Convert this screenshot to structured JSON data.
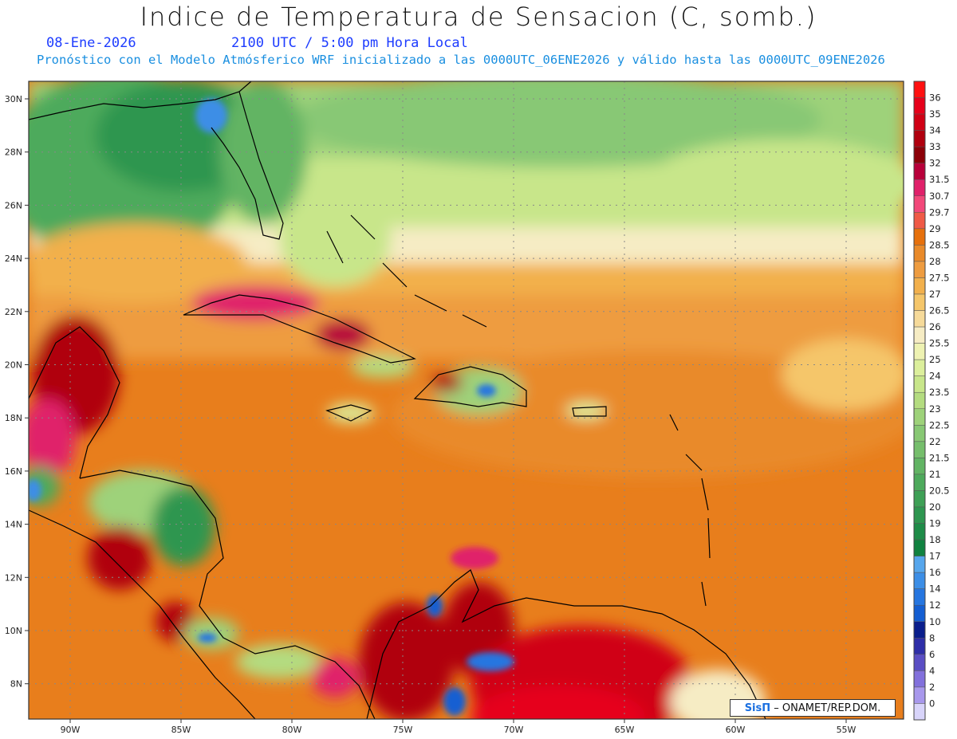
{
  "title": "Indice de Temperatura de Sensacion (C, somb.)",
  "date_label": "08-Ene-2026",
  "time_label": "2100 UTC / 5:00 pm Hora Local",
  "model_info": "Pronóstico con el Modelo Atmósferico WRF inicializado a las 0000UTC_06ENE2026 y válido hasta las  0000UTC_09ENE2026",
  "credit": {
    "brand": "SisΠ",
    "text": "– ONAMET/REP.DOM."
  },
  "axes": {
    "lon_ticks": [
      "90W",
      "85W",
      "80W",
      "75W",
      "70W",
      "65W",
      "60W",
      "55W"
    ],
    "lat_ticks": [
      "30N",
      "28N",
      "26N",
      "24N",
      "22N",
      "20N",
      "18N",
      "16N",
      "14N",
      "12N",
      "10N",
      "8N"
    ]
  },
  "colorbar": {
    "levels": [
      {
        "label": "36",
        "color": "#e6001a"
      },
      {
        "label": "35",
        "color": "#d00014"
      },
      {
        "label": "34",
        "color": "#b0000e"
      },
      {
        "label": "33",
        "color": "#8c0008"
      },
      {
        "label": "32",
        "color": "#b8003a"
      },
      {
        "label": "31.5",
        "color": "#e0206a"
      },
      {
        "label": "30.7",
        "color": "#f2487a"
      },
      {
        "label": "29.7",
        "color": "#f05a46"
      },
      {
        "label": "29",
        "color": "#e6700c"
      },
      {
        "label": "28.5",
        "color": "#e98a2a"
      },
      {
        "label": "28",
        "color": "#ee9c40"
      },
      {
        "label": "27.5",
        "color": "#f2b04c"
      },
      {
        "label": "27",
        "color": "#f5c66a"
      },
      {
        "label": "26.5",
        "color": "#f6da9a"
      },
      {
        "label": "26",
        "color": "#f6ecc4"
      },
      {
        "label": "25.5",
        "color": "#eef2b2"
      },
      {
        "label": "25",
        "color": "#dcef9c"
      },
      {
        "label": "24",
        "color": "#c8e68a"
      },
      {
        "label": "23.5",
        "color": "#b4dc80"
      },
      {
        "label": "23",
        "color": "#9ed27a"
      },
      {
        "label": "22.5",
        "color": "#88c874"
      },
      {
        "label": "22",
        "color": "#76be6c"
      },
      {
        "label": "21.5",
        "color": "#62b464"
      },
      {
        "label": "21",
        "color": "#4eaa5c"
      },
      {
        "label": "20.5",
        "color": "#3ea056"
      },
      {
        "label": "20",
        "color": "#2e9650"
      },
      {
        "label": "19",
        "color": "#1e8c48"
      },
      {
        "label": "18",
        "color": "#108240"
      },
      {
        "label": "17",
        "color": "#56a6ec"
      },
      {
        "label": "16",
        "color": "#3c8ee6"
      },
      {
        "label": "14",
        "color": "#2676e0"
      },
      {
        "label": "12",
        "color": "#145ed2"
      },
      {
        "label": "10",
        "color": "#0a1e8c"
      },
      {
        "label": "8",
        "color": "#2e2ea8"
      },
      {
        "label": "6",
        "color": "#5a4ec4"
      },
      {
        "label": "4",
        "color": "#8270dc"
      },
      {
        "label": "2",
        "color": "#a898ec"
      },
      {
        "label": "0",
        "color": "#d8d4fa"
      }
    ],
    "top_cap_color": "#ff1010"
  },
  "colors": {
    "ocean_base": "#e87e1c",
    "frame": "#333333",
    "grid": "#888888",
    "coast": "#000000"
  }
}
